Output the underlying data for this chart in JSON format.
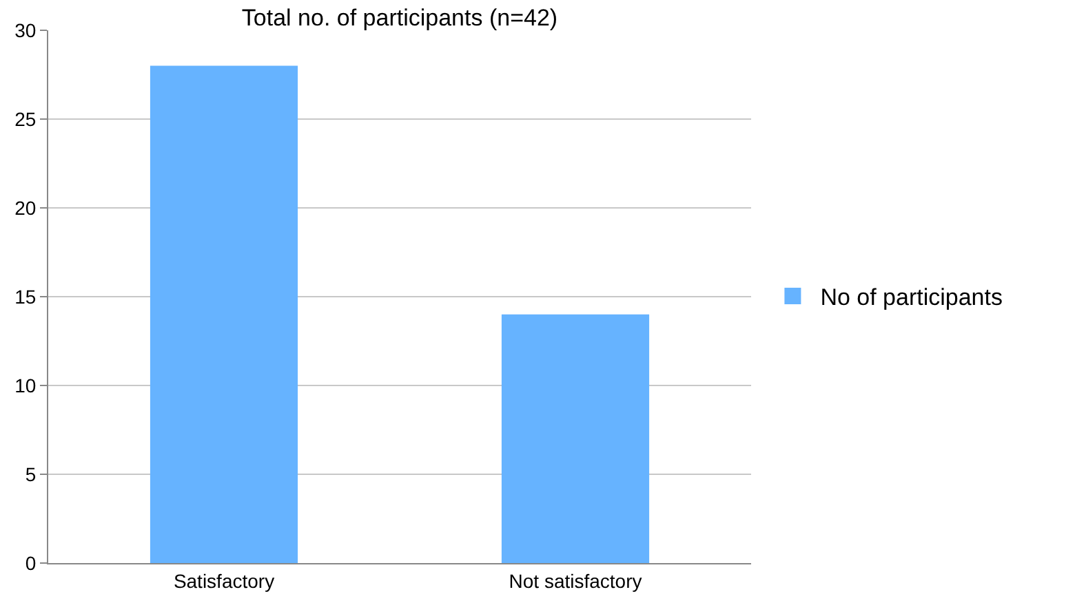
{
  "chart_data": {
    "type": "bar",
    "title": "Total no. of participants (n=42)",
    "categories": [
      "Satisfactory",
      "Not satisfactory"
    ],
    "series": [
      {
        "name": "No of participants",
        "color": "#66b3ff",
        "values": [
          28,
          14
        ]
      }
    ],
    "ylim": [
      0,
      30
    ],
    "yticks": [
      0,
      5,
      10,
      15,
      20,
      25,
      30
    ],
    "grid": "y",
    "legend": "right"
  }
}
